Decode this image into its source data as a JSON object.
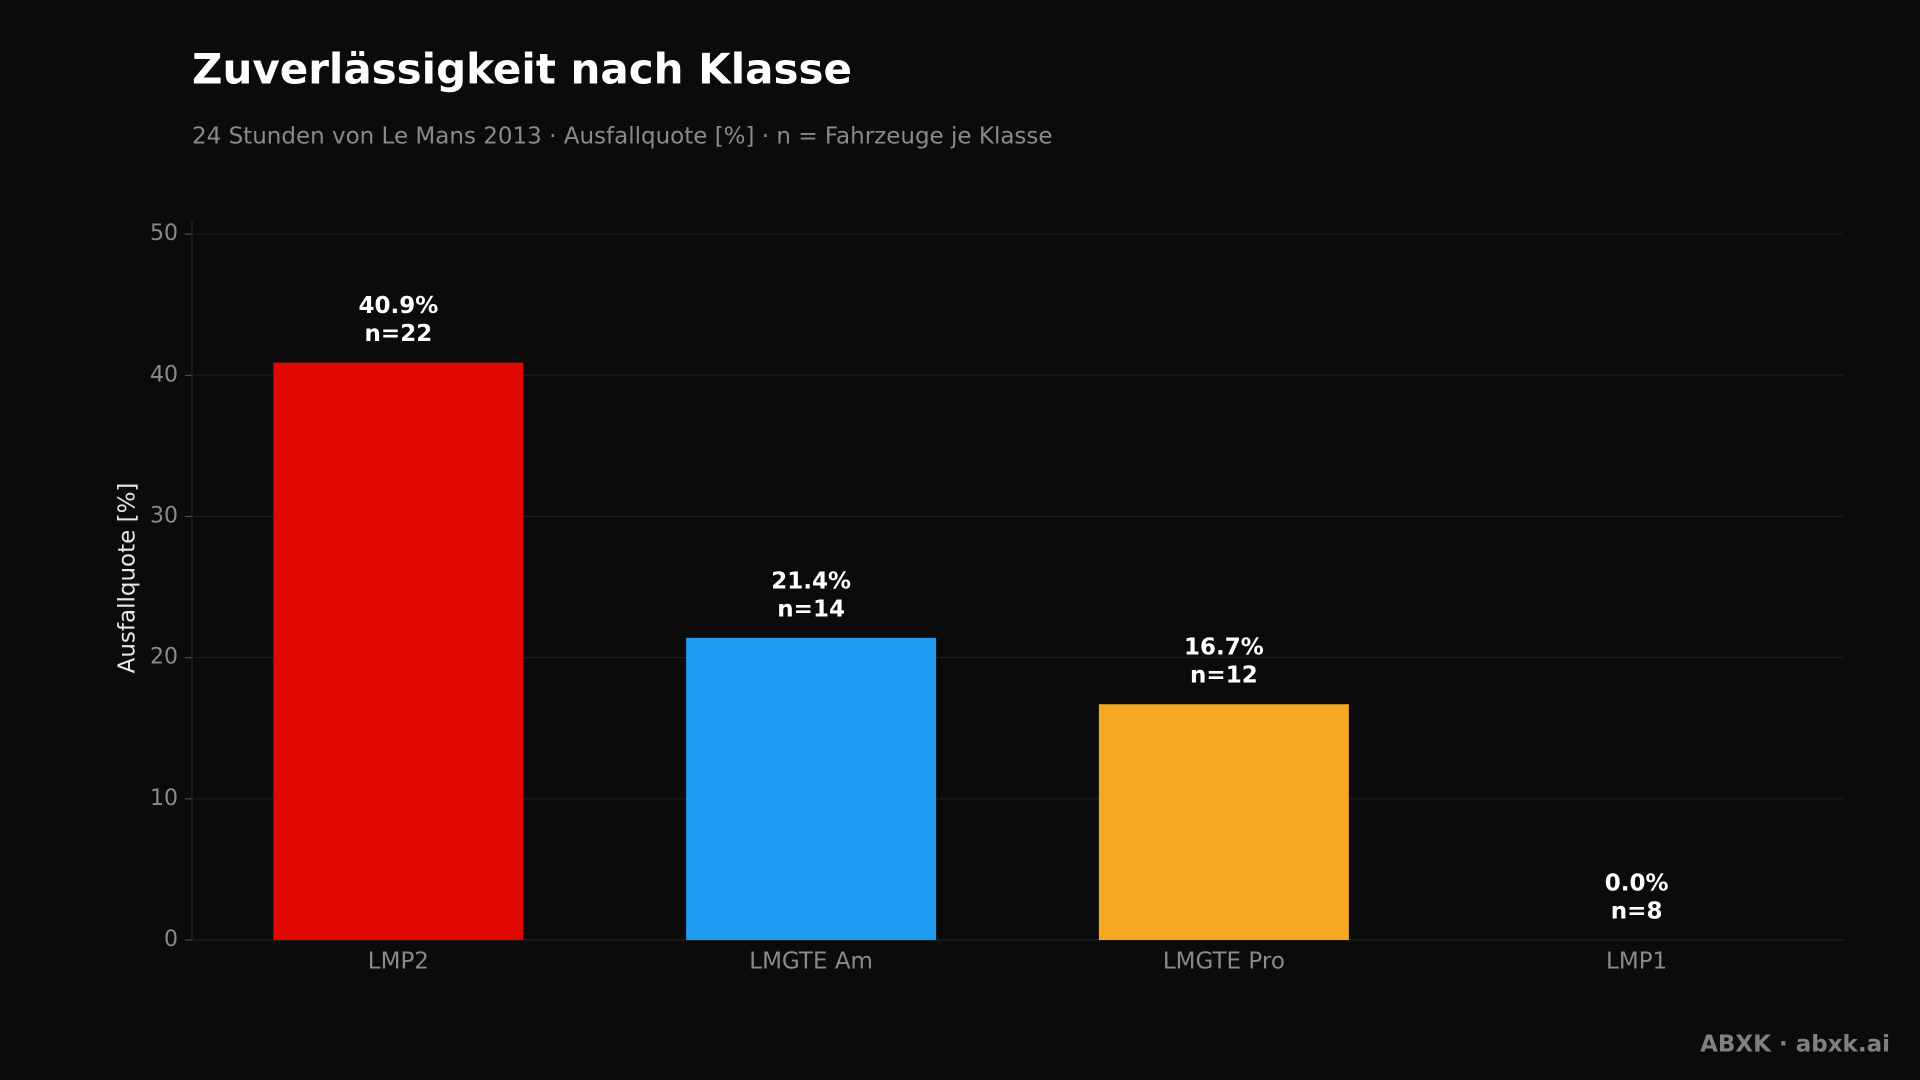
{
  "chart_data": {
    "type": "bar",
    "title": "Zuverlässigkeit nach Klasse",
    "subtitle": "24 Stunden von Le Mans 2013 · Ausfallquote [%] · n = Fahrzeuge je Klasse",
    "y_label": "Ausfallquote [%]",
    "categories": [
      "LMP2",
      "LMGTE Am",
      "LMGTE Pro",
      "LMP1"
    ],
    "values": [
      40.9,
      21.4,
      16.7,
      0.0
    ],
    "value_labels": [
      "40.9%",
      "21.4%",
      "16.7%",
      "0.0%"
    ],
    "count_labels": [
      "n=22",
      "n=14",
      "n=12",
      "n=8"
    ],
    "colors": [
      "#e00700",
      "#1e9bf0",
      "#f5a623",
      "#8e44ad"
    ],
    "ylim": [
      0,
      51
    ],
    "yticks": [
      0,
      10,
      20,
      30,
      40,
      50
    ],
    "grid": true,
    "footer": "ABXK · abxk.ai"
  }
}
